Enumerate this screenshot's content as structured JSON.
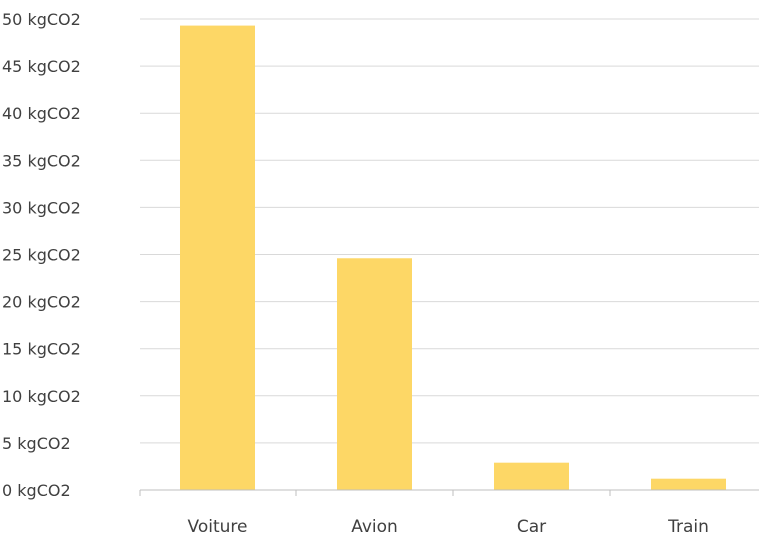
{
  "chart_data": {
    "type": "bar",
    "title": "",
    "xlabel": "",
    "ylabel": "",
    "categories": [
      "Voiture",
      "Avion",
      "Car",
      "Train"
    ],
    "values": [
      49.3,
      24.6,
      2.9,
      1.2
    ],
    "unit": "kgCO2",
    "ylim": [
      0,
      50
    ],
    "ytick_step": 5,
    "ytick_labels": [
      "0 kgCO2",
      "5 kgCO2",
      "10 kgCO2",
      "15 kgCO2",
      "20 kgCO2",
      "25 kgCO2",
      "30 kgCO2",
      "35 kgCO2",
      "40 kgCO2",
      "45 kgCO2",
      "50 kgCO2"
    ],
    "grid": true,
    "legend": "none",
    "colors": {
      "bar": "#fdd766"
    }
  }
}
